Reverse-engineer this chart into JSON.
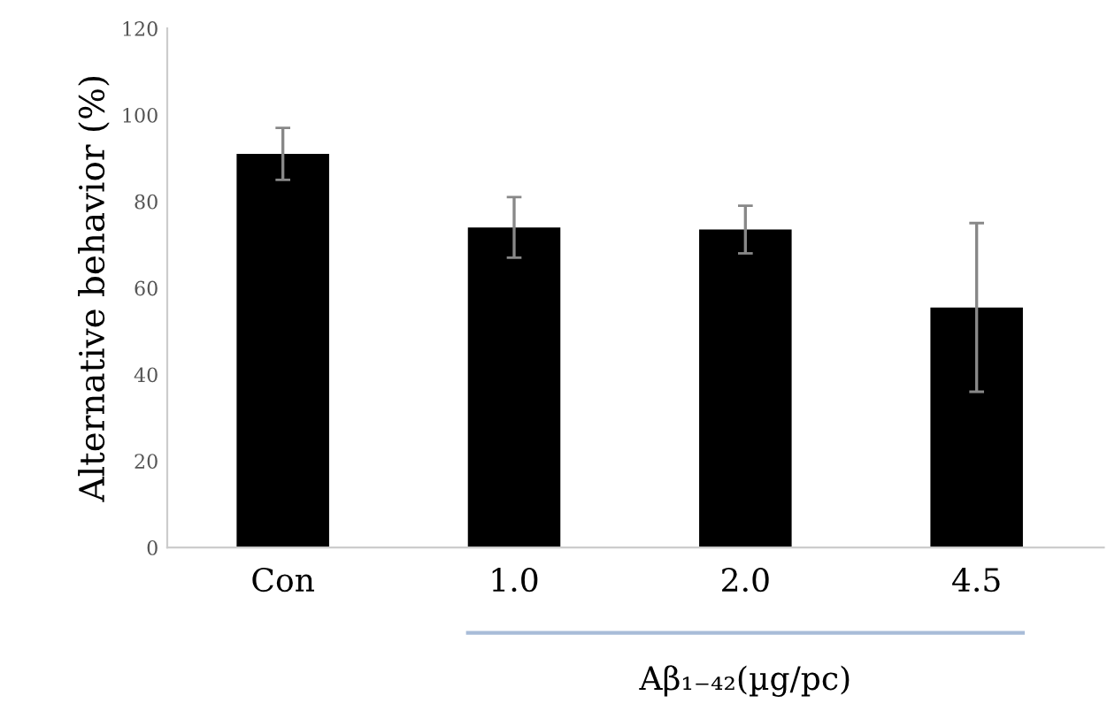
{
  "chart_data": {
    "type": "bar",
    "categories": [
      "Con",
      "1.0",
      "2.0",
      "4.5"
    ],
    "values": [
      91,
      74,
      73.5,
      55.5
    ],
    "errors": [
      6,
      7,
      5.5,
      19.5
    ],
    "color": "#000000",
    "ylabel": "Alternative behavior (%)",
    "xlabel": "Aβ₁₋₄₂(µg/pc)",
    "ylim": [
      0,
      120
    ],
    "yticks": [
      0,
      20,
      40,
      60,
      80,
      100,
      120
    ],
    "grid": false
  }
}
